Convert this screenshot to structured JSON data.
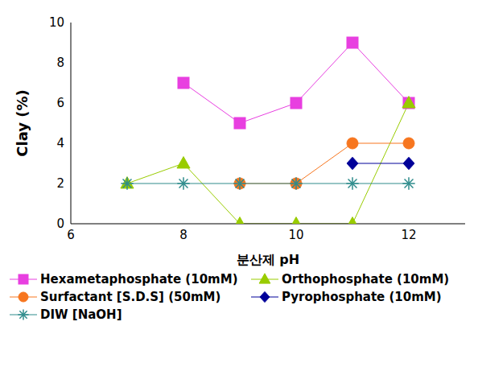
{
  "chart_data": {
    "type": "line",
    "x_label": "분산제 pH",
    "y_label": "Clay (%)",
    "xlim": [
      6,
      13
    ],
    "xticks": [
      6,
      8,
      10,
      12
    ],
    "ylim": [
      0,
      10
    ],
    "yticks": [
      0,
      2,
      4,
      6,
      8,
      10
    ],
    "grid": false,
    "legend": "bottom",
    "series": [
      {
        "name": "Hexametaphosphate (10mM)",
        "color": "#e83fe0",
        "marker": "square",
        "x": [
          8,
          9,
          10,
          11,
          12
        ],
        "values": [
          7,
          5,
          6,
          9,
          6
        ]
      },
      {
        "name": "Orthophosphate (10mM)",
        "color": "#99cc00",
        "marker": "triangle",
        "x": [
          7,
          8,
          9,
          10,
          11,
          12
        ],
        "values": [
          2,
          3,
          0,
          0,
          0,
          6
        ]
      },
      {
        "name": "Surfactant [S.D.S] (50mM)",
        "color": "#f7761f",
        "marker": "circle",
        "x": [
          9,
          10,
          11,
          12
        ],
        "values": [
          2,
          2,
          4,
          4
        ]
      },
      {
        "name": "Pyrophosphate (10mM)",
        "color": "#000099",
        "marker": "diamond",
        "x": [
          11,
          12
        ],
        "values": [
          3,
          3
        ]
      },
      {
        "name": "DIW [NaOH]",
        "color": "#2e8b8b",
        "marker": "star",
        "x": [
          7,
          8,
          9,
          10,
          11,
          12
        ],
        "values": [
          2,
          2,
          2,
          2,
          2,
          2
        ]
      }
    ]
  }
}
